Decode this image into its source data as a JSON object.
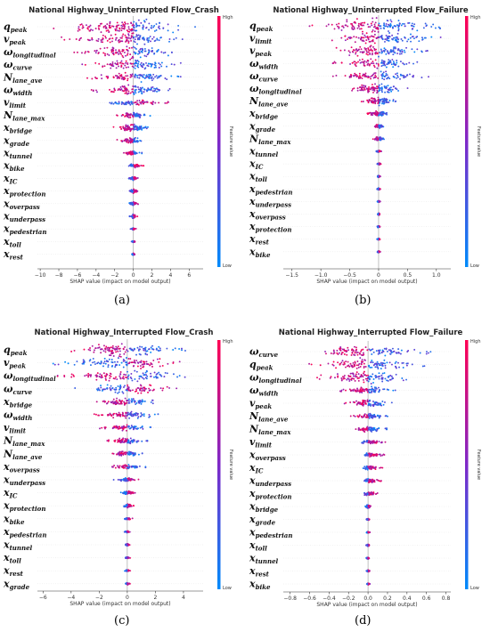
{
  "chart_data": [
    {
      "type": "scatter",
      "title": "National Highway_Uninterrupted Flow_Crash",
      "xlabel": "SHAP value (impact on model output)",
      "xlim": [
        -10.3,
        7.5
      ],
      "xticks": [
        -10,
        -8,
        -6,
        -4,
        -2,
        0,
        2,
        4,
        6
      ],
      "colorbar": {
        "label": "Feature value",
        "high": "High",
        "low": "Low"
      },
      "caption": "(a)",
      "features": [
        {
          "base": "q",
          "sub": "peak",
          "min": -9.2,
          "max": 6.8,
          "width": 8,
          "high_side": "left"
        },
        {
          "base": "v",
          "sub": "peak",
          "min": -8.0,
          "max": 5.8,
          "width": 6,
          "high_side": "left"
        },
        {
          "base": "ω",
          "sub": "longitudinal",
          "min": -7.5,
          "max": 5.5,
          "width": 6,
          "high_side": "left"
        },
        {
          "base": "ω",
          "sub": "curve",
          "min": -6.0,
          "max": 5.2,
          "width": 5,
          "high_side": "left"
        },
        {
          "base": "N",
          "sub": "lane_ave",
          "min": -5.5,
          "max": 5.8,
          "width": 5,
          "high_side": "left"
        },
        {
          "base": "ω",
          "sub": "width",
          "min": -4.5,
          "max": 4.5,
          "width": 5,
          "high_side": "left"
        },
        {
          "base": "v",
          "sub": "limit",
          "min": -3.8,
          "max": 4.0,
          "width": 3,
          "high_side": "right"
        },
        {
          "base": "N",
          "sub": "lane_max",
          "min": -2.0,
          "max": 2.0,
          "width": 3,
          "high_side": "left"
        },
        {
          "base": "x",
          "sub": "bridge",
          "min": -2.5,
          "max": 2.5,
          "width": 4,
          "high_side": "left"
        },
        {
          "base": "x",
          "sub": "grade",
          "min": -2.0,
          "max": 1.2,
          "width": 3,
          "high_side": "left"
        },
        {
          "base": "x",
          "sub": "tunnel",
          "min": -1.5,
          "max": 1.0,
          "width": 2,
          "high_side": "left"
        },
        {
          "base": "x",
          "sub": "bike",
          "min": -0.5,
          "max": 1.2,
          "width": 2,
          "high_side": "right"
        },
        {
          "base": "x",
          "sub": "IC",
          "min": -0.5,
          "max": 0.6,
          "width": 2,
          "high_side": "right"
        },
        {
          "base": "x",
          "sub": "protection",
          "min": -0.5,
          "max": 0.6,
          "width": 2,
          "high_side": "right"
        },
        {
          "base": "x",
          "sub": "overpass",
          "min": -0.5,
          "max": 0.6,
          "width": 2,
          "high_side": "right"
        },
        {
          "base": "x",
          "sub": "underpass",
          "min": -0.4,
          "max": 0.5,
          "width": 2,
          "high_side": "right"
        },
        {
          "base": "x",
          "sub": "pedestrian",
          "min": -0.3,
          "max": 0.3,
          "width": 1,
          "high_side": "right"
        },
        {
          "base": "x",
          "sub": "toll",
          "min": -0.2,
          "max": 0.2,
          "width": 1,
          "high_side": "right"
        },
        {
          "base": "x",
          "sub": "rest",
          "min": -0.2,
          "max": 0.2,
          "width": 1,
          "high_side": "right"
        }
      ]
    },
    {
      "type": "scatter",
      "title": "National Highway_Uninterrupted Flow_Failure",
      "xlabel": "SHAP value (impact on model output)",
      "xlim": [
        -1.65,
        1.25
      ],
      "xticks": [
        -1.5,
        -1.0,
        -0.5,
        0.0,
        0.5,
        1.0
      ],
      "colorbar": {
        "label": "Feature value",
        "high": "High",
        "low": "Low"
      },
      "caption": "(b)",
      "features": [
        {
          "base": "q",
          "sub": "peak",
          "min": -1.3,
          "max": 1.1,
          "width": 8,
          "high_side": "left"
        },
        {
          "base": "v",
          "sub": "limit",
          "min": -0.9,
          "max": 1.1,
          "width": 6,
          "high_side": "left"
        },
        {
          "base": "v",
          "sub": "peak",
          "min": -1.0,
          "max": 0.9,
          "width": 6,
          "high_side": "left"
        },
        {
          "base": "ω",
          "sub": "width",
          "min": -0.8,
          "max": 0.7,
          "width": 5,
          "high_side": "left"
        },
        {
          "base": "ω",
          "sub": "curve",
          "min": -0.9,
          "max": 0.9,
          "width": 5,
          "high_side": "left"
        },
        {
          "base": "ω",
          "sub": "longitudinal",
          "min": -0.7,
          "max": 0.6,
          "width": 5,
          "high_side": "left"
        },
        {
          "base": "N",
          "sub": "lane_ave",
          "min": -0.3,
          "max": 0.3,
          "width": 4,
          "high_side": "left"
        },
        {
          "base": "x",
          "sub": "bridge",
          "min": -0.2,
          "max": 0.2,
          "width": 3,
          "high_side": "left"
        },
        {
          "base": "x",
          "sub": "grade",
          "min": -0.1,
          "max": 0.1,
          "width": 2,
          "high_side": "left"
        },
        {
          "base": "N",
          "sub": "lane_max",
          "min": -0.1,
          "max": 0.1,
          "width": 2,
          "high_side": "left"
        },
        {
          "base": "x",
          "sub": "tunnel",
          "min": -0.05,
          "max": 0.05,
          "width": 1,
          "high_side": "right"
        },
        {
          "base": "x",
          "sub": "IC",
          "min": -0.04,
          "max": 0.04,
          "width": 1,
          "high_side": "right"
        },
        {
          "base": "x",
          "sub": "toll",
          "min": -0.03,
          "max": 0.03,
          "width": 1,
          "high_side": "right"
        },
        {
          "base": "x",
          "sub": "pedestrian",
          "min": -0.03,
          "max": 0.03,
          "width": 1,
          "high_side": "right"
        },
        {
          "base": "x",
          "sub": "underpass",
          "min": -0.03,
          "max": 0.03,
          "width": 1,
          "high_side": "right"
        },
        {
          "base": "x",
          "sub": "overpass",
          "min": -0.03,
          "max": 0.03,
          "width": 1,
          "high_side": "right"
        },
        {
          "base": "x",
          "sub": "protection",
          "min": -0.03,
          "max": 0.03,
          "width": 1,
          "high_side": "right"
        },
        {
          "base": "x",
          "sub": "rest",
          "min": -0.03,
          "max": 0.03,
          "width": 1,
          "high_side": "right"
        },
        {
          "base": "x",
          "sub": "bike",
          "min": -0.03,
          "max": 0.03,
          "width": 1,
          "high_side": "right"
        }
      ]
    },
    {
      "type": "scatter",
      "title": "National Highway_Interrupted Flow_Crash",
      "xlabel": "SHAP value (impact on model output)",
      "xlim": [
        -6.4,
        5.4
      ],
      "xticks": [
        -6,
        -4,
        -2,
        0,
        2,
        4
      ],
      "colorbar": {
        "label": "Feature value",
        "high": "High",
        "low": "Low"
      },
      "caption": "(c)",
      "features": [
        {
          "base": "q",
          "sub": "peak",
          "min": -4.5,
          "max": 4.5,
          "width": 7,
          "high_side": "left"
        },
        {
          "base": "v",
          "sub": "peak",
          "min": -5.5,
          "max": 4.5,
          "width": 6,
          "high_side": "right"
        },
        {
          "base": "ω",
          "sub": "longitudinal",
          "min": -5.0,
          "max": 4.2,
          "width": 6,
          "high_side": "left"
        },
        {
          "base": "ω",
          "sub": "curve",
          "min": -4.0,
          "max": 4.2,
          "width": 5,
          "high_side": "right"
        },
        {
          "base": "x",
          "sub": "bridge",
          "min": -2.5,
          "max": 2.2,
          "width": 4,
          "high_side": "left"
        },
        {
          "base": "ω",
          "sub": "width",
          "min": -2.5,
          "max": 2.2,
          "width": 4,
          "high_side": "left"
        },
        {
          "base": "v",
          "sub": "limit",
          "min": -2.0,
          "max": 1.8,
          "width": 3,
          "high_side": "left"
        },
        {
          "base": "N",
          "sub": "lane_max",
          "min": -1.5,
          "max": 1.5,
          "width": 3,
          "high_side": "left"
        },
        {
          "base": "N",
          "sub": "lane_ave",
          "min": -1.2,
          "max": 1.2,
          "width": 3,
          "high_side": "left"
        },
        {
          "base": "x",
          "sub": "overpass",
          "min": -1.5,
          "max": 1.5,
          "width": 2,
          "high_side": "left"
        },
        {
          "base": "x",
          "sub": "underpass",
          "min": -1.0,
          "max": 1.0,
          "width": 2,
          "high_side": "right"
        },
        {
          "base": "x",
          "sub": "IC",
          "min": -0.5,
          "max": 0.6,
          "width": 2,
          "high_side": "right"
        },
        {
          "base": "x",
          "sub": "protection",
          "min": -0.4,
          "max": 0.5,
          "width": 2,
          "high_side": "right"
        },
        {
          "base": "x",
          "sub": "bike",
          "min": -0.3,
          "max": 0.4,
          "width": 1,
          "high_side": "right"
        },
        {
          "base": "x",
          "sub": "pedestrian",
          "min": -0.2,
          "max": 0.2,
          "width": 1,
          "high_side": "right"
        },
        {
          "base": "x",
          "sub": "tunnel",
          "min": -0.2,
          "max": 0.2,
          "width": 1,
          "high_side": "right"
        },
        {
          "base": "x",
          "sub": "toll",
          "min": -0.2,
          "max": 0.2,
          "width": 1,
          "high_side": "right"
        },
        {
          "base": "x",
          "sub": "rest",
          "min": -0.2,
          "max": 0.2,
          "width": 1,
          "high_side": "right"
        },
        {
          "base": "x",
          "sub": "grade",
          "min": -0.2,
          "max": 0.2,
          "width": 1,
          "high_side": "right"
        }
      ]
    },
    {
      "type": "scatter",
      "title": "National Highway_Interrupted Flow_Failure",
      "xlabel": "SHAP value (impact on model output)",
      "xlim": [
        -0.87,
        0.85
      ],
      "xticks": [
        -0.8,
        -0.6,
        -0.4,
        -0.2,
        0.0,
        0.2,
        0.4,
        0.6,
        0.8
      ],
      "colorbar": {
        "label": "Feature value",
        "high": "High",
        "low": "Low"
      },
      "caption": "(d)",
      "features": [
        {
          "base": "ω",
          "sub": "curve",
          "min": -0.7,
          "max": 0.7,
          "width": 6,
          "high_side": "left"
        },
        {
          "base": "q",
          "sub": "peak",
          "min": -0.65,
          "max": 0.6,
          "width": 6,
          "high_side": "left"
        },
        {
          "base": "ω",
          "sub": "longitudinal",
          "min": -0.6,
          "max": 0.5,
          "width": 6,
          "high_side": "left"
        },
        {
          "base": "ω",
          "sub": "width",
          "min": -0.3,
          "max": 0.3,
          "width": 4,
          "high_side": "left"
        },
        {
          "base": "v",
          "sub": "peak",
          "min": -0.25,
          "max": 0.25,
          "width": 4,
          "high_side": "left"
        },
        {
          "base": "N",
          "sub": "lane_ave",
          "min": -0.2,
          "max": 0.2,
          "width": 3,
          "high_side": "left"
        },
        {
          "base": "N",
          "sub": "lane_max",
          "min": -0.15,
          "max": 0.2,
          "width": 3,
          "high_side": "left"
        },
        {
          "base": "v",
          "sub": "limit",
          "min": -0.1,
          "max": 0.2,
          "width": 2,
          "high_side": "right"
        },
        {
          "base": "x",
          "sub": "overpass",
          "min": -0.05,
          "max": 0.2,
          "width": 2,
          "high_side": "right"
        },
        {
          "base": "x",
          "sub": "IC",
          "min": -0.05,
          "max": 0.15,
          "width": 2,
          "high_side": "right"
        },
        {
          "base": "x",
          "sub": "underpass",
          "min": -0.05,
          "max": 0.15,
          "width": 2,
          "high_side": "right"
        },
        {
          "base": "x",
          "sub": "protection",
          "min": -0.05,
          "max": 0.1,
          "width": 2,
          "high_side": "right"
        },
        {
          "base": "x",
          "sub": "bridge",
          "min": -0.03,
          "max": 0.03,
          "width": 2,
          "high_side": "right"
        },
        {
          "base": "x",
          "sub": "grade",
          "min": -0.02,
          "max": 0.02,
          "width": 1,
          "high_side": "right"
        },
        {
          "base": "x",
          "sub": "pedestrian",
          "min": -0.02,
          "max": 0.02,
          "width": 1,
          "high_side": "right"
        },
        {
          "base": "x",
          "sub": "toll",
          "min": -0.02,
          "max": 0.02,
          "width": 1,
          "high_side": "right"
        },
        {
          "base": "x",
          "sub": "tunnel",
          "min": -0.02,
          "max": 0.02,
          "width": 1,
          "high_side": "right"
        },
        {
          "base": "x",
          "sub": "rest",
          "min": -0.02,
          "max": 0.02,
          "width": 1,
          "high_side": "right"
        },
        {
          "base": "x",
          "sub": "bike",
          "min": -0.02,
          "max": 0.02,
          "width": 1,
          "high_side": "right"
        }
      ]
    }
  ],
  "colors": {
    "high": "#ff0052",
    "low": "#008bfb"
  }
}
